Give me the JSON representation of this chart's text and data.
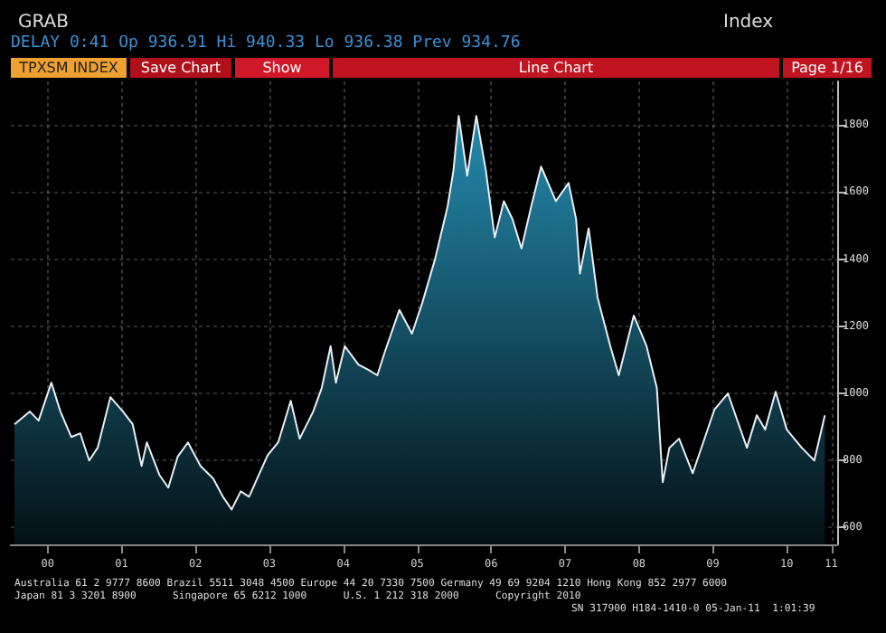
{
  "chart_data": {
    "type": "area",
    "title": "Line Chart",
    "annotations": [
      "GRAB",
      "DELAY 0:41 Op 936.91 Hi 940.33 Lo 936.38 Prev 934.76",
      "Index",
      "TPXSM INDEX",
      "Save Chart",
      "Show",
      "Page 1/16",
      "Australia 61 2 9777 8600 Brazil 5511 3048 4500 Europe 44 20 7330 7500 Germany 49 69 9204 1210 Hong Kong 852 2977 6000",
      "Japan 81 3 3201 8900      Singapore 65 6212 1000      U.S. 1 212 318 2000      Copyright 2010",
      "SN 317900 H184-1410-0 05-Jan-11  1:01:39"
    ],
    "x": [
      "2000-01-19",
      "2000-04-04",
      "2000-05-17",
      "2000-07-19",
      "2000-09-02",
      "2000-10-26",
      "2000-12-09",
      "2001-01-22",
      "2001-03-05",
      "2001-05-07",
      "2001-07-08",
      "2001-08-25",
      "2001-10-08",
      "2001-11-03",
      "2002-01-04",
      "2002-02-17",
      "2002-04-04",
      "2002-05-25",
      "2002-07-26",
      "2002-09-27",
      "2002-11-14",
      "2002-12-27",
      "2003-02-10",
      "2003-03-23",
      "2003-06-23",
      "2003-08-14",
      "2003-10-15",
      "2003-11-28",
      "2004-02-03",
      "2004-03-16",
      "2004-04-29",
      "2004-05-25",
      "2004-07-08",
      "2004-09-13",
      "2004-11-03",
      "2004-12-16",
      "2005-01-22",
      "2005-04-04",
      "2005-06-05",
      "2005-07-26",
      "2005-09-27",
      "2005-11-28",
      "2005-12-27",
      "2006-01-22",
      "2006-03-05",
      "2006-04-19",
      "2006-06-05",
      "2006-07-19",
      "2006-09-02",
      "2006-10-15",
      "2006-11-28",
      "2007-01-15",
      "2007-03-05",
      "2007-05-17",
      "2007-07-19",
      "2007-08-25",
      "2007-09-13",
      "2007-10-26",
      "2007-12-09",
      "2008-02-10",
      "2008-03-23",
      "2008-06-05",
      "2008-08-07",
      "2008-09-27",
      "2008-10-26",
      "2008-11-28",
      "2009-01-15",
      "2009-03-23",
      "2009-04-29",
      "2009-07-08",
      "2009-09-13",
      "2009-12-16",
      "2010-02-03",
      "2010-03-16",
      "2010-05-07",
      "2010-07-01",
      "2010-09-13",
      "2010-11-14",
      "2011-01-05"
    ],
    "series": [
      {
        "color": "#1d6f8c",
        "values": [
          908,
          946,
          919,
          1032,
          946,
          870,
          881,
          800,
          838,
          989,
          946,
          908,
          784,
          854,
          757,
          719,
          811,
          854,
          784,
          746,
          692,
          654,
          708,
          692,
          816,
          854,
          978,
          865,
          946,
          1016,
          1141,
          1032,
          1141,
          1086,
          1070,
          1054,
          1124,
          1249,
          1178,
          1270,
          1400,
          1557,
          1665,
          1827,
          1649,
          1827,
          1665,
          1465,
          1573,
          1519,
          1432,
          1557,
          1676,
          1573,
          1627,
          1519,
          1357,
          1492,
          1286,
          1141,
          1054,
          1232,
          1141,
          1016,
          735,
          838,
          865,
          762,
          827,
          951,
          1000,
          838,
          935,
          892,
          1005,
          892,
          838,
          800,
          935
        ]
      }
    ],
    "xlim": [
      "2000-01-01",
      "2011-03-07"
    ],
    "xticks": [
      {
        "value": "2000-07-01",
        "label": "00"
      },
      {
        "value": "2001-07-01",
        "label": "01"
      },
      {
        "value": "2002-07-01",
        "label": "02"
      },
      {
        "value": "2003-07-01",
        "label": "03"
      },
      {
        "value": "2004-07-01",
        "label": "04"
      },
      {
        "value": "2005-07-01",
        "label": "05"
      },
      {
        "value": "2006-07-01",
        "label": "06"
      },
      {
        "value": "2007-07-01",
        "label": "07"
      },
      {
        "value": "2008-07-01",
        "label": "08"
      },
      {
        "value": "2009-07-01",
        "label": "09"
      },
      {
        "value": "2010-07-01",
        "label": "10"
      },
      {
        "value": "2011-02-06",
        "label": "11"
      }
    ],
    "ylim": [
      550,
      1930
    ],
    "yticks": [
      600,
      800,
      1000,
      1200,
      1400,
      1600,
      1800
    ],
    "grid": true,
    "marker": "none",
    "line_style": "solid"
  }
}
